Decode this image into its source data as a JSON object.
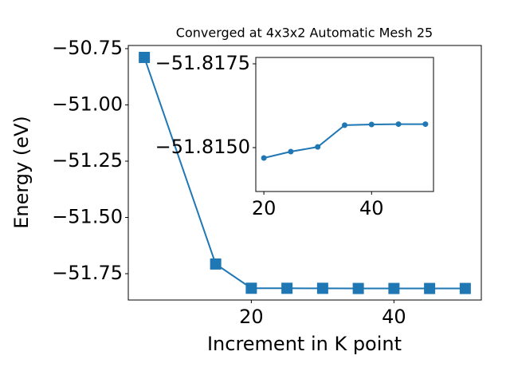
{
  "chart_data": [
    {
      "type": "line",
      "title": "Converged at 4x3x2 Automatic Mesh 25",
      "x_label": "Increment in K point",
      "y_label": "Energy (eV)",
      "x": [
        5,
        15,
        20,
        25,
        30,
        35,
        40,
        45,
        50
      ],
      "series": [
        {
          "color": "#1f77b4",
          "marker": "square",
          "values": [
            -50.789,
            -51.707,
            -51.8147,
            -51.8149,
            -51.815,
            -51.8157,
            -51.8157,
            -51.8157,
            -51.8157
          ]
        }
      ],
      "xlim": [
        2.75,
        52.25
      ],
      "xticks": [
        20,
        40
      ],
      "ylim": [
        -51.867,
        -50.736
      ],
      "yticks": [
        {
          "value": -50.75,
          "label": "−50.75"
        },
        {
          "value": -51.0,
          "label": "−51.00"
        },
        {
          "value": -51.25,
          "label": "−51.25"
        },
        {
          "value": -51.5,
          "label": "−51.50"
        },
        {
          "value": -51.75,
          "label": "−51.75"
        }
      ]
    },
    {
      "type": "line",
      "x": [
        20,
        25,
        30,
        35,
        40,
        45,
        50
      ],
      "series": [
        {
          "color": "#1f77b4",
          "marker": "circle",
          "values": [
            -51.81469,
            -51.81488,
            -51.81502,
            -51.81567,
            -51.81569,
            -51.8157,
            -51.8157
          ]
        }
      ],
      "xlim": [
        18.5,
        51.5
      ],
      "xticks": [
        20,
        40
      ],
      "ylim": [
        -51.81369,
        -51.81769
      ],
      "yticks": [
        {
          "value": -51.8175,
          "label": "−51.8175"
        },
        {
          "value": -51.815,
          "label": "−51.8150"
        }
      ]
    }
  ]
}
